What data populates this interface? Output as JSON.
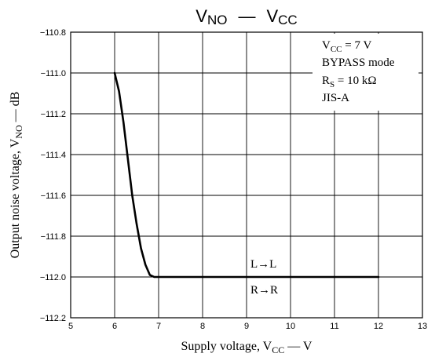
{
  "chart_data": {
    "type": "line",
    "title": {
      "main": "V",
      "sub1": "NO",
      "dash": "—",
      "main2": "V",
      "sub2": "CC"
    },
    "xlabel": {
      "pre": "Supply voltage, V",
      "sub": "CC",
      "post": " — V"
    },
    "ylabel": {
      "pre": "Output noise voltage, V",
      "sub": "NO",
      "post": " — dB"
    },
    "xlim": [
      5,
      13
    ],
    "ylim": [
      -112.2,
      -110.8
    ],
    "x_ticks": [
      "5",
      "6",
      "7",
      "8",
      "9",
      "10",
      "11",
      "12",
      "13"
    ],
    "y_ticks": [
      "−110.8",
      "−111.0",
      "−111.2",
      "−111.4",
      "−111.6",
      "−111.8",
      "−112.0",
      "−112.2"
    ],
    "grid": true,
    "series": [
      {
        "x": [
          6.0,
          6.1,
          6.2,
          6.3,
          6.4,
          6.5,
          6.6,
          6.7,
          6.8,
          6.9,
          7.0,
          7.5,
          8,
          9,
          10,
          11,
          12
        ],
        "values": [
          -111.0,
          -111.09,
          -111.24,
          -111.42,
          -111.6,
          -111.74,
          -111.86,
          -111.94,
          -111.99,
          -112.0,
          -112.0,
          -112.0,
          -112.0,
          -112.0,
          -112.0,
          -112.0,
          -112.0
        ]
      }
    ],
    "annotations": {
      "conditions": {
        "vcc": {
          "pre": "V",
          "sub": "CC",
          "post": " = 7 V"
        },
        "mode": "BYPASS mode",
        "rs": {
          "pre": "R",
          "sub": "S",
          "post": " = 10 kΩ"
        },
        "filter": "JIS-A"
      },
      "curve_labels": [
        "L→L",
        "R→R"
      ]
    }
  }
}
